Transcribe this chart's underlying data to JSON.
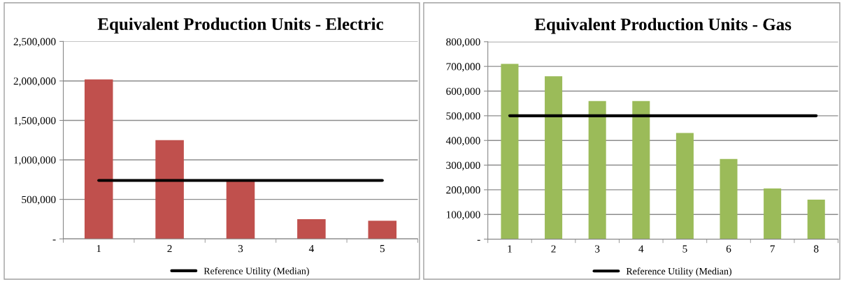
{
  "chart_data": [
    {
      "type": "bar",
      "title": "Equivalent Production Units - Electric",
      "categories": [
        "1",
        "2",
        "3",
        "4",
        "5"
      ],
      "series": [
        {
          "color": "#c0504d",
          "values": [
            2020000,
            1250000,
            740000,
            250000,
            230000
          ]
        },
        {
          "type": "line",
          "name": "Reference Utility (Median)",
          "color": "#000000",
          "values": [
            740000,
            740000,
            740000,
            740000,
            740000
          ]
        }
      ],
      "ylim": [
        0,
        2500000
      ],
      "yticks": [
        {
          "value": 0,
          "label": "-"
        },
        {
          "value": 500000,
          "label": "500,000"
        },
        {
          "value": 1000000,
          "label": "1,000,000"
        },
        {
          "value": 1500000,
          "label": "1,500,000"
        },
        {
          "value": 2000000,
          "label": "2,000,000"
        },
        {
          "value": 2500000,
          "label": "2,500,000"
        }
      ],
      "grid": "y",
      "legend": "bottom",
      "marker": "none",
      "line_style": "solid"
    },
    {
      "type": "bar",
      "title": "Equivalent Production Units - Gas",
      "categories": [
        "1",
        "2",
        "3",
        "4",
        "5",
        "6",
        "7",
        "8"
      ],
      "series": [
        {
          "color": "#9bbb59",
          "values": [
            710000,
            660000,
            560000,
            560000,
            430000,
            325000,
            205000,
            160000
          ]
        },
        {
          "type": "line",
          "name": "Reference Utility (Median)",
          "color": "#000000",
          "values": [
            500000,
            500000,
            500000,
            500000,
            500000,
            500000,
            500000,
            500000
          ]
        }
      ],
      "ylim": [
        0,
        800000
      ],
      "yticks": [
        {
          "value": 0,
          "label": "-"
        },
        {
          "value": 100000,
          "label": "100,000"
        },
        {
          "value": 200000,
          "label": "200,000"
        },
        {
          "value": 300000,
          "label": "300,000"
        },
        {
          "value": 400000,
          "label": "400,000"
        },
        {
          "value": 500000,
          "label": "500,000"
        },
        {
          "value": 600000,
          "label": "600,000"
        },
        {
          "value": 700000,
          "label": "700,000"
        },
        {
          "value": 800000,
          "label": "800,000"
        }
      ],
      "grid": "y",
      "legend": "bottom",
      "marker": "none",
      "line_style": "solid"
    }
  ]
}
